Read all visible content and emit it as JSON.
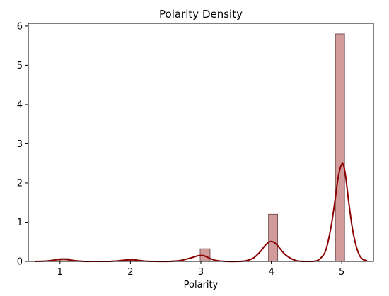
{
  "chart_data": {
    "type": "bar",
    "title": "Polarity Density",
    "xlabel": "Polarity",
    "ylabel": "",
    "xlim": [
      0.55,
      5.45
    ],
    "ylim": [
      0,
      6.07
    ],
    "xticks": [
      1,
      2,
      3,
      4,
      5
    ],
    "yticks": [
      0,
      1,
      2,
      3,
      4,
      5,
      6
    ],
    "grid": false,
    "colors": {
      "bar_fill": "#d29b9b",
      "bar_edge": "#7a5555",
      "curve": "#8b0000",
      "axis": "#000000"
    },
    "bars": [
      {
        "x0": 1.0,
        "x1": 1.13,
        "value": 0.07
      },
      {
        "x0": 1.96,
        "x1": 2.09,
        "value": 0.05
      },
      {
        "x0": 2.99,
        "x1": 3.13,
        "value": 0.32
      },
      {
        "x0": 3.96,
        "x1": 4.09,
        "value": 1.2
      },
      {
        "x0": 4.91,
        "x1": 5.04,
        "value": 5.8
      }
    ],
    "kde": {
      "x": [
        0.65,
        0.8,
        0.9,
        1.0,
        1.05,
        1.1,
        1.2,
        1.35,
        1.5,
        1.7,
        1.8,
        1.9,
        2.0,
        2.05,
        2.1,
        2.2,
        2.35,
        2.55,
        2.7,
        2.8,
        2.9,
        2.95,
        3.0,
        3.05,
        3.1,
        3.2,
        3.35,
        3.55,
        3.65,
        3.75,
        3.85,
        3.9,
        3.95,
        4.0,
        4.05,
        4.1,
        4.2,
        4.35,
        4.55,
        4.65,
        4.72,
        4.78,
        4.85,
        4.9,
        4.95,
        5.0,
        5.03,
        5.06,
        5.1,
        5.15,
        5.2,
        5.25,
        5.3,
        5.36
      ],
      "y": [
        0.0,
        0.01,
        0.03,
        0.05,
        0.06,
        0.05,
        0.02,
        0.0,
        0.0,
        0.0,
        0.01,
        0.03,
        0.04,
        0.04,
        0.03,
        0.01,
        0.0,
        0.0,
        0.02,
        0.06,
        0.11,
        0.14,
        0.15,
        0.14,
        0.1,
        0.03,
        0.0,
        0.0,
        0.02,
        0.09,
        0.26,
        0.38,
        0.47,
        0.51,
        0.47,
        0.38,
        0.17,
        0.02,
        0.0,
        0.02,
        0.12,
        0.32,
        0.9,
        1.5,
        2.15,
        2.48,
        2.42,
        2.1,
        1.5,
        0.85,
        0.42,
        0.16,
        0.05,
        0.02
      ]
    }
  }
}
